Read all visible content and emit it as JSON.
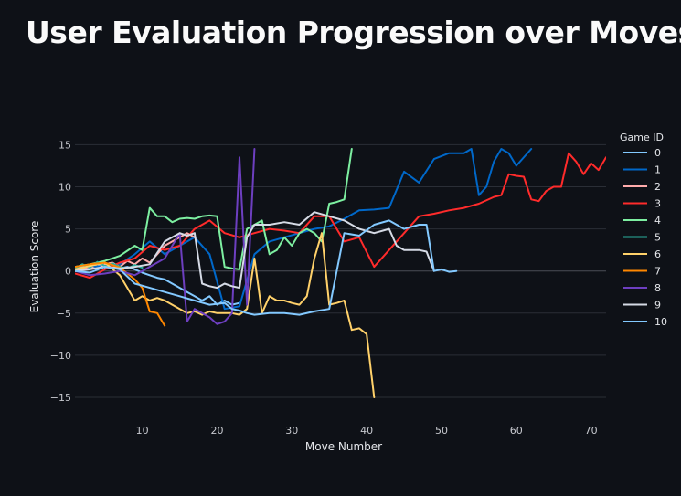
{
  "page": {
    "title": "User Evaluation Progression over Moves"
  },
  "chart_data": {
    "type": "line",
    "xlabel": "Move Number",
    "ylabel": "Evaluation Score",
    "xlim": [
      1,
      72
    ],
    "ylim": [
      -17.5,
      17
    ],
    "xticks": [
      10,
      20,
      30,
      40,
      50,
      60,
      70
    ],
    "yticks": [
      15,
      10,
      5,
      0,
      -5,
      -10,
      -15
    ],
    "grid": true,
    "legend": {
      "title": "Game ID",
      "placement": "right"
    },
    "series": [
      {
        "name": "0",
        "color": "#83c9ff",
        "x": [
          1,
          2,
          3,
          4,
          5,
          6,
          7,
          8,
          9,
          10,
          11,
          12,
          13,
          14,
          15,
          16,
          17,
          18,
          19,
          20,
          21,
          22,
          23
        ],
        "y": [
          0.2,
          0.5,
          0.3,
          0.8,
          0.4,
          0.6,
          0.3,
          0.5,
          0.2,
          -0.2,
          -0.5,
          -0.8,
          -1,
          -1.5,
          -2,
          -2.5,
          -3,
          -3.5,
          -3,
          -4,
          -3.5,
          -4,
          -3.8
        ]
      },
      {
        "name": "1",
        "color": "#0068c9",
        "x": [
          1,
          3,
          5,
          7,
          9,
          11,
          13,
          15,
          17,
          19,
          21,
          23,
          25,
          27,
          29,
          31,
          33,
          35,
          37,
          39,
          41,
          43,
          45,
          47,
          49,
          51,
          53,
          54,
          55,
          56,
          57,
          58,
          59,
          60,
          62
        ],
        "y": [
          0,
          0.5,
          0.6,
          0.8,
          2,
          3.5,
          2,
          3,
          4,
          2,
          -4.5,
          -4.2,
          2,
          3.5,
          4,
          4.5,
          5,
          5.3,
          6.2,
          7.2,
          7.3,
          7.5,
          11.8,
          10.5,
          13.3,
          14,
          14,
          14.5,
          9,
          10,
          13,
          14.5,
          14,
          12.5,
          14.5
        ]
      },
      {
        "name": "2",
        "color": "#ffabab",
        "x": [
          1,
          2,
          3,
          4,
          5,
          6,
          7,
          8,
          9,
          10,
          11,
          12,
          13,
          14,
          15,
          16,
          17
        ],
        "y": [
          0,
          0.3,
          0.5,
          0.2,
          0.8,
          1,
          0.5,
          1.2,
          0.8,
          1.5,
          1,
          2,
          3,
          3.5,
          4,
          4.5,
          4
        ]
      },
      {
        "name": "3",
        "color": "#ff2b2b",
        "x": [
          1,
          3,
          5,
          7,
          9,
          11,
          13,
          15,
          17,
          19,
          21,
          23,
          25,
          27,
          29,
          31,
          33,
          35,
          37,
          39,
          41,
          43,
          45,
          47,
          49,
          51,
          53,
          55,
          57,
          58,
          59,
          60,
          61,
          62,
          63,
          64,
          65,
          66,
          67,
          68,
          69,
          70,
          71,
          72
        ],
        "y": [
          -0.3,
          -0.8,
          0.2,
          1,
          1.5,
          3,
          2.5,
          3,
          5,
          6,
          4.5,
          4,
          4.5,
          5,
          4.8,
          4.5,
          6.5,
          6.5,
          3.5,
          4,
          0.5,
          2.5,
          4.5,
          6.5,
          6.8,
          7.2,
          7.5,
          8,
          8.8,
          9,
          11.5,
          11.3,
          11.2,
          8.5,
          8.3,
          9.5,
          10,
          10,
          14,
          13,
          11.5,
          12.8,
          12,
          13.5
        ]
      },
      {
        "name": "4",
        "color": "#7defa1",
        "x": [
          1,
          3,
          5,
          7,
          9,
          10,
          11,
          12,
          13,
          14,
          15,
          16,
          17,
          18,
          19,
          20,
          21,
          22,
          23,
          24,
          25,
          26,
          27,
          28,
          29,
          30,
          31,
          32,
          33,
          34,
          35,
          36,
          37,
          38
        ],
        "y": [
          0.5,
          0.8,
          1.2,
          1.8,
          3,
          2.5,
          7.5,
          6.5,
          6.5,
          5.8,
          6.2,
          6.3,
          6.2,
          6.5,
          6.6,
          6.5,
          0.5,
          0.3,
          0.2,
          5,
          5.5,
          6,
          2,
          2.5,
          4,
          3,
          4.5,
          5,
          4.5,
          3.5,
          8,
          8.2,
          8.5,
          14.5
        ]
      },
      {
        "name": "5",
        "color": "#29b09d",
        "x": [
          1,
          2,
          3,
          4,
          5,
          6,
          7,
          8,
          9,
          10
        ],
        "y": [
          0.3,
          0.8,
          0.4,
          1.1,
          0.6,
          0.9,
          0.5,
          0.3,
          0.7,
          0.4
        ]
      },
      {
        "name": "6",
        "color": "#ffd16a",
        "x": [
          1,
          3,
          5,
          7,
          9,
          10,
          11,
          12,
          13,
          14,
          15,
          16,
          17,
          18,
          19,
          20,
          21,
          22,
          23,
          24,
          25,
          26,
          27,
          28,
          29,
          30,
          31,
          32,
          33,
          34,
          35,
          36,
          37,
          38,
          39,
          40,
          41
        ],
        "y": [
          0.2,
          0.6,
          1,
          -0.5,
          -3.5,
          -3,
          -3.5,
          -3.2,
          -3.5,
          -4,
          -4.5,
          -5,
          -4.8,
          -5.2,
          -4.8,
          -5,
          -5,
          -5,
          -5.2,
          -4.5,
          1.5,
          -5,
          -3,
          -3.5,
          -3.5,
          -3.8,
          -4,
          -3,
          1.5,
          4.5,
          -4,
          -3.8,
          -3.5,
          -7,
          -6.8,
          -7.5,
          -15
        ]
      },
      {
        "name": "7",
        "color": "#ff8700",
        "x": [
          1,
          3,
          5,
          7,
          9,
          10,
          11,
          12,
          13
        ],
        "y": [
          0.5,
          0.8,
          1,
          0.4,
          -1,
          -2,
          -4.8,
          -5,
          -6.5
        ]
      },
      {
        "name": "8",
        "color": "#6d3fc0",
        "x": [
          1,
          3,
          5,
          7,
          9,
          11,
          13,
          15,
          16,
          17,
          18,
          19,
          20,
          21,
          22,
          23,
          24,
          25
        ],
        "y": [
          0,
          -0.5,
          -0.3,
          0,
          -0.5,
          0.5,
          1.5,
          4.5,
          -6,
          -4.5,
          -5,
          -5.5,
          -6.3,
          -6,
          -5,
          13.5,
          -4,
          14.5
        ]
      },
      {
        "name": "9",
        "color": "#d5dae5",
        "x": [
          1,
          3,
          5,
          7,
          9,
          11,
          13,
          14,
          15,
          16,
          17,
          18,
          19,
          20,
          21,
          22,
          23,
          24,
          25,
          27,
          29,
          31,
          33,
          35,
          37,
          39,
          41,
          43,
          44,
          45,
          47,
          48,
          49
        ],
        "y": [
          0,
          0.2,
          0.5,
          0.3,
          0.5,
          0.8,
          3.5,
          4,
          4.5,
          4.2,
          4.5,
          -1.5,
          -1.8,
          -2,
          -1.5,
          -1.8,
          -2,
          4,
          5.5,
          5.5,
          5.8,
          5.5,
          7,
          6.5,
          6,
          5,
          4.5,
          5,
          3,
          2.5,
          2.5,
          2.3,
          0
        ]
      },
      {
        "name": "10",
        "color": "#83c9ff",
        "x": [
          1,
          3,
          5,
          7,
          9,
          11,
          13,
          15,
          17,
          19,
          21,
          22,
          23,
          24,
          25,
          27,
          29,
          31,
          33,
          35,
          36,
          37,
          39,
          41,
          43,
          45,
          47,
          48,
          49,
          50,
          51,
          52
        ],
        "y": [
          0,
          -0.2,
          0.5,
          0.2,
          -1.5,
          -2,
          -2.5,
          -3,
          -3.5,
          -4,
          -3.8,
          -4.5,
          -4.7,
          -5,
          -5.2,
          -5,
          -5,
          -5.2,
          -4.8,
          -4.5,
          0,
          4.5,
          4.2,
          5.5,
          6,
          5,
          5.5,
          5.5,
          0,
          0.2,
          -0.1,
          0
        ]
      }
    ]
  }
}
